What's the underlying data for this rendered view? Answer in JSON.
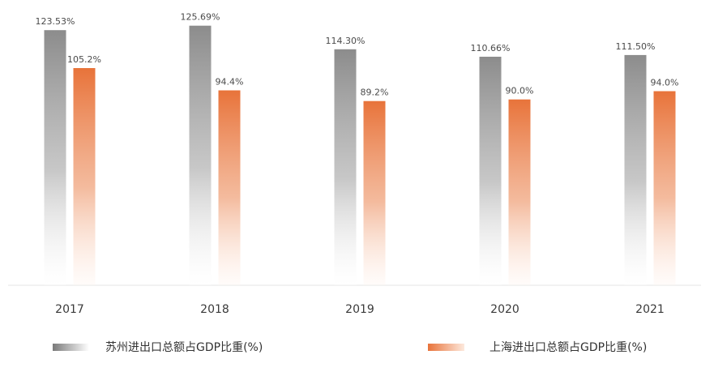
{
  "chart_data": {
    "type": "bar",
    "categories": [
      "2017",
      "2018",
      "2019",
      "2020",
      "2021"
    ],
    "series": [
      {
        "name": "苏州进出口总额占GDP比重(%)",
        "values": [
          123.53,
          125.69,
          114.3,
          110.66,
          111.5
        ],
        "labels": [
          "123.53%",
          "125.69%",
          "114.30%",
          "110.66%",
          "111.50%"
        ],
        "color": "#8a8a8a"
      },
      {
        "name": "上海进出口总额占GDP比重(%)",
        "values": [
          105.2,
          94.4,
          89.2,
          90.0,
          94.0
        ],
        "labels": [
          "105.2%",
          "94.4%",
          "89.2%",
          "90.0%",
          "94.0%"
        ],
        "color": "#e8733a"
      }
    ],
    "ylim": [
      0,
      129
    ],
    "grid": false,
    "legend_position": "bottom"
  }
}
